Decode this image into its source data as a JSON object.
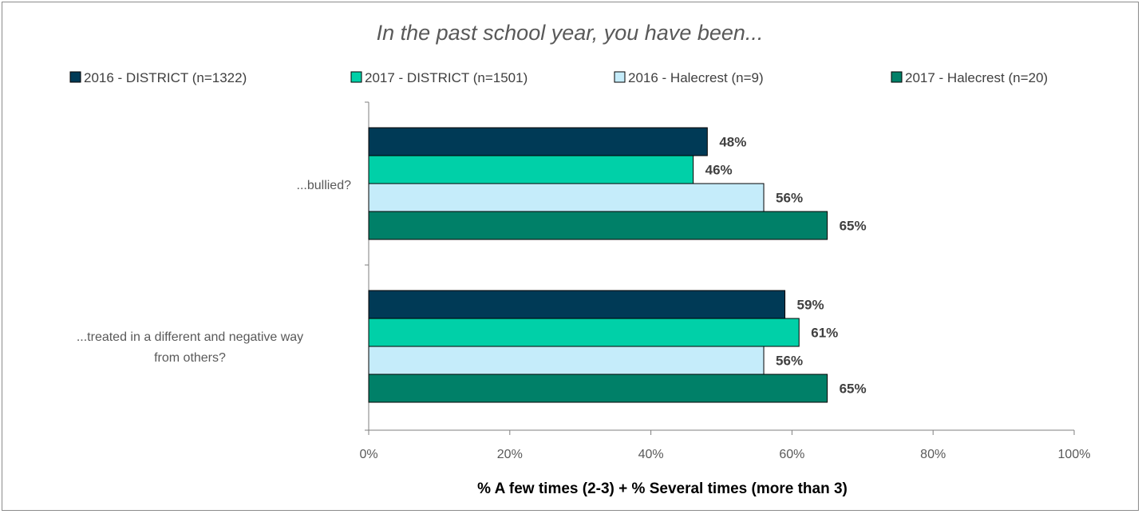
{
  "chart_data": {
    "type": "bar",
    "orientation": "horizontal",
    "title": "In the past school year, you have been...",
    "xlabel": "% A few times (2-3) + % Several times (more than 3)",
    "ylabel": "",
    "xlim": [
      0,
      100
    ],
    "x_ticks": [
      "0%",
      "20%",
      "40%",
      "60%",
      "80%",
      "100%"
    ],
    "legend_position": "top",
    "categories": [
      [
        "...bullied?"
      ],
      [
        "...treated in a different and negative way",
        "from others?"
      ]
    ],
    "series": [
      {
        "name": "2016 - DISTRICT (n=1322)",
        "color": "#003a56",
        "values": [
          48,
          59
        ],
        "labels": [
          "48%",
          "59%"
        ]
      },
      {
        "name": "2017 - DISTRICT (n=1501)",
        "color": "#00d0a8",
        "values": [
          46,
          61
        ],
        "labels": [
          "46%",
          "61%"
        ]
      },
      {
        "name": "2016 - Halecrest (n=9)",
        "color": "#c5ecfa",
        "values": [
          56,
          56
        ],
        "labels": [
          "56%",
          "56%"
        ]
      },
      {
        "name": "2017 - Halecrest (n=20)",
        "color": "#008068",
        "values": [
          65,
          65
        ],
        "labels": [
          "65%",
          "65%"
        ]
      }
    ]
  }
}
